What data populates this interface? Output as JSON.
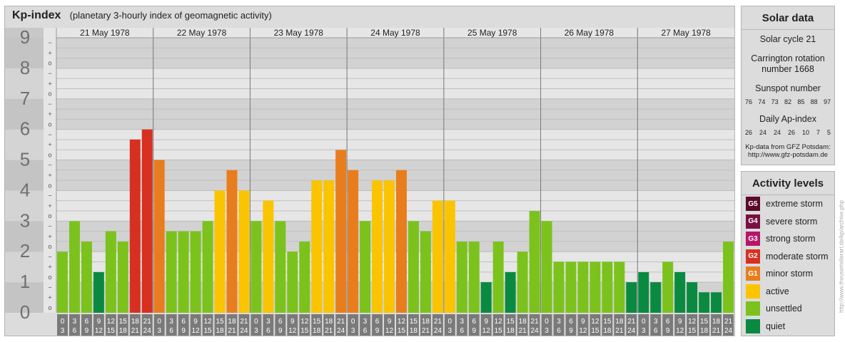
{
  "header": {
    "title": "Kp-index",
    "subtitle": "(planetary 3-hourly index of geomagnetic activity)"
  },
  "solar": {
    "title": "Solar data",
    "cycle": "Solar cycle 21",
    "carrington_line1": "Carrington rotation",
    "carrington_line2": "number 1668",
    "sunspot_label": "Sunspot number",
    "sunspot_values": [
      "76",
      "74",
      "73",
      "82",
      "85",
      "88",
      "97"
    ],
    "ap_label": "Daily Ap-index",
    "ap_values": [
      "26",
      "24",
      "24",
      "26",
      "10",
      "7",
      "5"
    ],
    "source_line1": "Kp-data from GFZ Potsdam:",
    "source_line2": "http://www.gfz-potsdam.de"
  },
  "levels": {
    "title": "Activity levels",
    "items": [
      {
        "code": "G5",
        "label": "extreme storm",
        "color": "#5a0a2a"
      },
      {
        "code": "G4",
        "label": "severe storm",
        "color": "#7a1040"
      },
      {
        "code": "G3",
        "label": "strong storm",
        "color": "#b8156a"
      },
      {
        "code": "G2",
        "label": "moderate storm",
        "color": "#d73020"
      },
      {
        "code": "G1",
        "label": "minor storm",
        "color": "#e87d1e"
      },
      {
        "code": "",
        "label": "active",
        "color": "#fbc400"
      },
      {
        "code": "",
        "label": "unsettled",
        "color": "#7cc21c"
      },
      {
        "code": "",
        "label": "quiet",
        "color": "#0a8a40"
      }
    ]
  },
  "watermark": "http://www.theusertellerart.de/kp/archive.php",
  "chart_data": {
    "type": "bar",
    "title": "Kp-index",
    "ylim": [
      0,
      9
    ],
    "y_ticks": [
      "0",
      "1",
      "2",
      "3",
      "4",
      "5",
      "6",
      "7",
      "8",
      "9"
    ],
    "minor_marks": [
      "o",
      "+",
      "−"
    ],
    "days": [
      "21 May 1978",
      "22 May 1978",
      "23 May 1978",
      "24 May 1978",
      "25 May 1978",
      "26 May 1978",
      "27 May 1978"
    ],
    "interval_start_labels": [
      "0",
      "3",
      "6",
      "9",
      "12",
      "15",
      "18",
      "21"
    ],
    "interval_end_labels": [
      "3",
      "6",
      "9",
      "12",
      "15",
      "18",
      "21",
      "24"
    ],
    "values": [
      [
        2.0,
        3.0,
        2.33,
        1.33,
        2.67,
        2.33,
        5.67,
        6.0
      ],
      [
        5.0,
        2.67,
        2.67,
        2.67,
        3.0,
        4.0,
        4.67,
        4.0
      ],
      [
        3.0,
        3.67,
        3.0,
        2.0,
        2.33,
        4.33,
        4.33,
        5.33
      ],
      [
        4.67,
        3.0,
        4.33,
        4.33,
        4.67,
        3.0,
        2.67,
        3.67
      ],
      [
        3.67,
        2.33,
        2.33,
        1.0,
        2.33,
        1.33,
        2.0,
        3.33
      ],
      [
        3.0,
        1.67,
        1.67,
        1.67,
        1.67,
        1.67,
        1.67,
        1.0
      ],
      [
        1.33,
        1.0,
        1.67,
        1.33,
        1.0,
        0.67,
        0.67,
        2.33
      ]
    ],
    "colors": {
      "quiet": "#0a8a40",
      "unsettled": "#7cc21c",
      "active": "#fbc400",
      "minor_storm": "#e87d1e",
      "moderate_storm": "#d73020"
    }
  }
}
